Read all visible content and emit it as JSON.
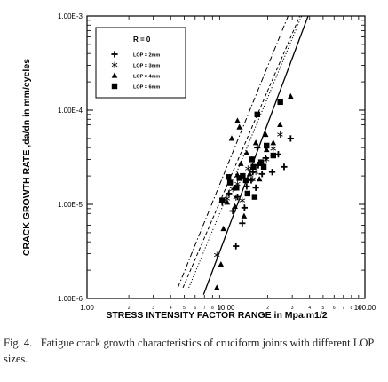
{
  "chart_data": {
    "type": "scatter",
    "xscale": "log",
    "yscale": "log",
    "xlabel": "STRESS INTENSITY FACTOR RANGE in Mpa.m1/2",
    "ylabel": "CRACK GROWTH RATE ,da/dn in mm/cycles",
    "xlim": [
      1,
      100
    ],
    "ylim": [
      1e-06,
      0.001
    ],
    "grid": false,
    "legend_position": "top-left",
    "legend_title": "R = 0",
    "x_major_ticks": [
      {
        "value": 1,
        "label": "1.00"
      },
      {
        "value": 10,
        "label": "10.00"
      },
      {
        "value": 100,
        "label": "100.00"
      }
    ],
    "x_minor_ticks": [
      {
        "value": 2,
        "label": "2"
      },
      {
        "value": 3,
        "label": "3"
      },
      {
        "value": 4,
        "label": "4"
      },
      {
        "value": 5,
        "label": "5"
      },
      {
        "value": 6,
        "label": "6"
      },
      {
        "value": 7,
        "label": "7"
      },
      {
        "value": 8,
        "label": "8"
      },
      {
        "value": 9,
        "label": "9"
      },
      {
        "value": 20,
        "label": "2"
      },
      {
        "value": 30,
        "label": "3"
      },
      {
        "value": 40,
        "label": "4"
      },
      {
        "value": 50,
        "label": "5"
      },
      {
        "value": 60,
        "label": "6"
      },
      {
        "value": 70,
        "label": "7"
      },
      {
        "value": 80,
        "label": "8"
      },
      {
        "value": 90,
        "label": "9"
      }
    ],
    "y_major_ticks": [
      {
        "value": 1e-06,
        "label": "1.00E-6"
      },
      {
        "value": 1e-05,
        "label": "1.00E-5"
      },
      {
        "value": 0.0001,
        "label": "1.00E-4"
      },
      {
        "value": 0.001,
        "label": "1.00E-3"
      }
    ],
    "series": [
      {
        "name": "LOP = 2mm",
        "marker": "plus",
        "line_style": "solid",
        "fit_line": [
          [
            6.9,
            1.1e-06
          ],
          [
            39,
            0.001
          ]
        ],
        "points": [
          [
            9.4,
            1.05e-05
          ],
          [
            10.5,
            1.3e-05
          ],
          [
            11.2,
            8.5e-06
          ],
          [
            12.1,
            1.2e-05
          ],
          [
            13.1,
            6.3e-06
          ],
          [
            14.1,
            1.55e-05
          ],
          [
            15.2,
            1.8e-05
          ],
          [
            15.6,
            2.2e-05
          ],
          [
            16.4,
            1.5e-05
          ],
          [
            17.1,
            2.6e-05
          ],
          [
            18.2,
            2.1e-05
          ],
          [
            19.3,
            3.1e-05
          ],
          [
            21.5,
            2.2e-05
          ],
          [
            23.8,
            3.4e-05
          ],
          [
            26.2,
            2.5e-05
          ],
          [
            29.2,
            5e-05
          ],
          [
            13.6,
            9.2e-06
          ],
          [
            11.8,
            3.6e-06
          ],
          [
            16.8,
            4e-05
          ]
        ]
      },
      {
        "name": "LOP = 3mm",
        "marker": "asterisk",
        "line_style": "dotted",
        "fit_line": [
          [
            5.4,
            1.3e-06
          ],
          [
            35,
            0.001
          ]
        ],
        "points": [
          [
            8.6,
            2.9e-06
          ],
          [
            10.2,
            1.15e-05
          ],
          [
            11.2,
            1.45e-05
          ],
          [
            12.1,
            1.65e-05
          ],
          [
            13.1,
            1.1e-05
          ],
          [
            14.4,
            2.4e-05
          ],
          [
            15.6,
            1.85e-05
          ],
          [
            17.4,
            2.75e-05
          ],
          [
            19.6,
            3e-05
          ],
          [
            21.9,
            3.9e-05
          ],
          [
            24.5,
            5.5e-05
          ],
          [
            11.8,
            1.18e-05
          ],
          [
            16.4,
            2.2e-05
          ]
        ]
      },
      {
        "name": "LOP = 4mm",
        "marker": "triangle",
        "line_style": "dashed",
        "fit_line": [
          [
            4.9,
            1.3e-06
          ],
          [
            34,
            0.001
          ]
        ],
        "points": [
          [
            8.6,
            1.3e-06
          ],
          [
            9.2,
            2.3e-06
          ],
          [
            9.6,
            5.5e-06
          ],
          [
            10.2,
            1.05e-05
          ],
          [
            11,
            5e-05
          ],
          [
            11.6,
            9.5e-06
          ],
          [
            12.1,
            2.05e-05
          ],
          [
            12.8,
            2.7e-05
          ],
          [
            13.5,
            7.5e-06
          ],
          [
            14.1,
            3.5e-05
          ],
          [
            14.8,
            2.1e-05
          ],
          [
            15.4,
            3e-05
          ],
          [
            16.4,
            4.5e-05
          ],
          [
            17.4,
            1.85e-05
          ],
          [
            18.3,
            2.7e-05
          ],
          [
            19.3,
            5.5e-05
          ],
          [
            21.9,
            4.5e-05
          ],
          [
            24.5,
            7e-05
          ],
          [
            29.2,
            0.00014
          ],
          [
            12.1,
            7.7e-05
          ],
          [
            12.5,
            6.6e-05
          ],
          [
            19.6,
            3.8e-05
          ],
          [
            11.5,
            1.5e-05
          ]
        ]
      },
      {
        "name": "LOP = 6mm",
        "marker": "square",
        "line_style": "dash-dot",
        "fit_line": [
          [
            4.5,
            1.3e-06
          ],
          [
            28,
            0.001
          ]
        ],
        "points": [
          [
            9.4,
            1.1e-05
          ],
          [
            10.7,
            1.7e-05
          ],
          [
            11.9,
            1.5e-05
          ],
          [
            12.5,
            1.9e-05
          ],
          [
            13.2,
            2e-05
          ],
          [
            14.3,
            1.3e-05
          ],
          [
            15.4,
            3e-05
          ],
          [
            15.8,
            2.5e-05
          ],
          [
            16.8,
            9e-05
          ],
          [
            17.9,
            2.8e-05
          ],
          [
            18.7,
            2.5e-05
          ],
          [
            19.6,
            4.2e-05
          ],
          [
            21.9,
            3.3e-05
          ],
          [
            13.9,
            1.8e-05
          ],
          [
            16.1,
            1.2e-05
          ],
          [
            24.6,
            0.000122
          ],
          [
            10.4,
            1.95e-05
          ]
        ]
      }
    ]
  },
  "caption": {
    "label": "Fig. 4.",
    "text": "Fatigue crack growth characteristics of cruciform joints with different LOP sizes."
  }
}
